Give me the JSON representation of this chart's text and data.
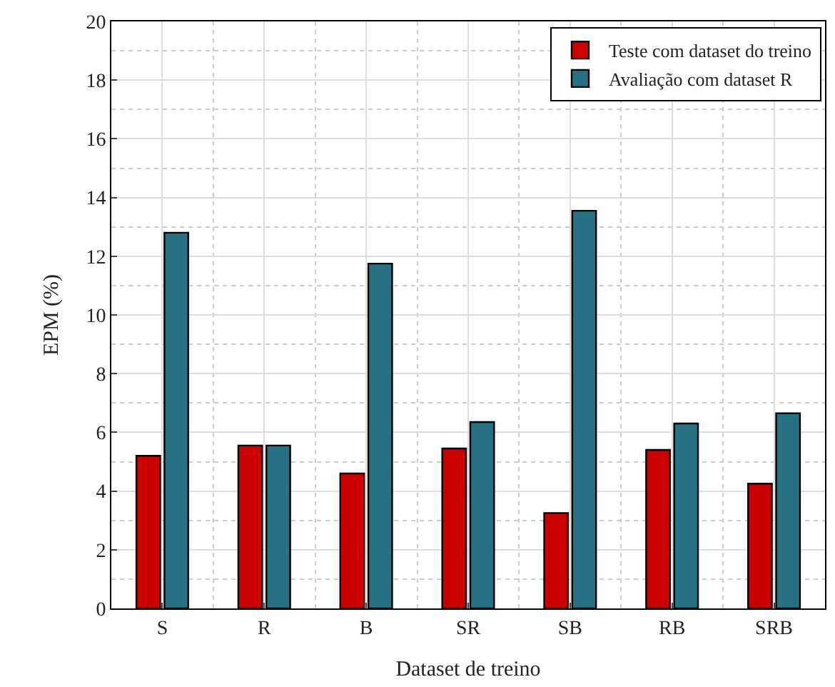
{
  "chart_data": {
    "type": "bar",
    "xlabel": "Dataset de treino",
    "ylabel": "EPM (%)",
    "categories": [
      "S",
      "R",
      "B",
      "SR",
      "SB",
      "RB",
      "SRB"
    ],
    "series": [
      {
        "name": "Teste com dataset do treino",
        "color": "#cc0000",
        "values": [
          5.2,
          5.55,
          4.6,
          5.45,
          3.25,
          5.4,
          4.25
        ]
      },
      {
        "name": "Avaliação com dataset R",
        "color": "#277183",
        "values": [
          12.8,
          5.55,
          11.75,
          6.35,
          13.55,
          6.3,
          6.65
        ]
      }
    ],
    "ylim": [
      0,
      20
    ],
    "yticks": [
      0,
      2,
      4,
      6,
      8,
      10,
      12,
      14,
      16,
      18,
      20
    ],
    "grid": true,
    "legend": "top right"
  }
}
